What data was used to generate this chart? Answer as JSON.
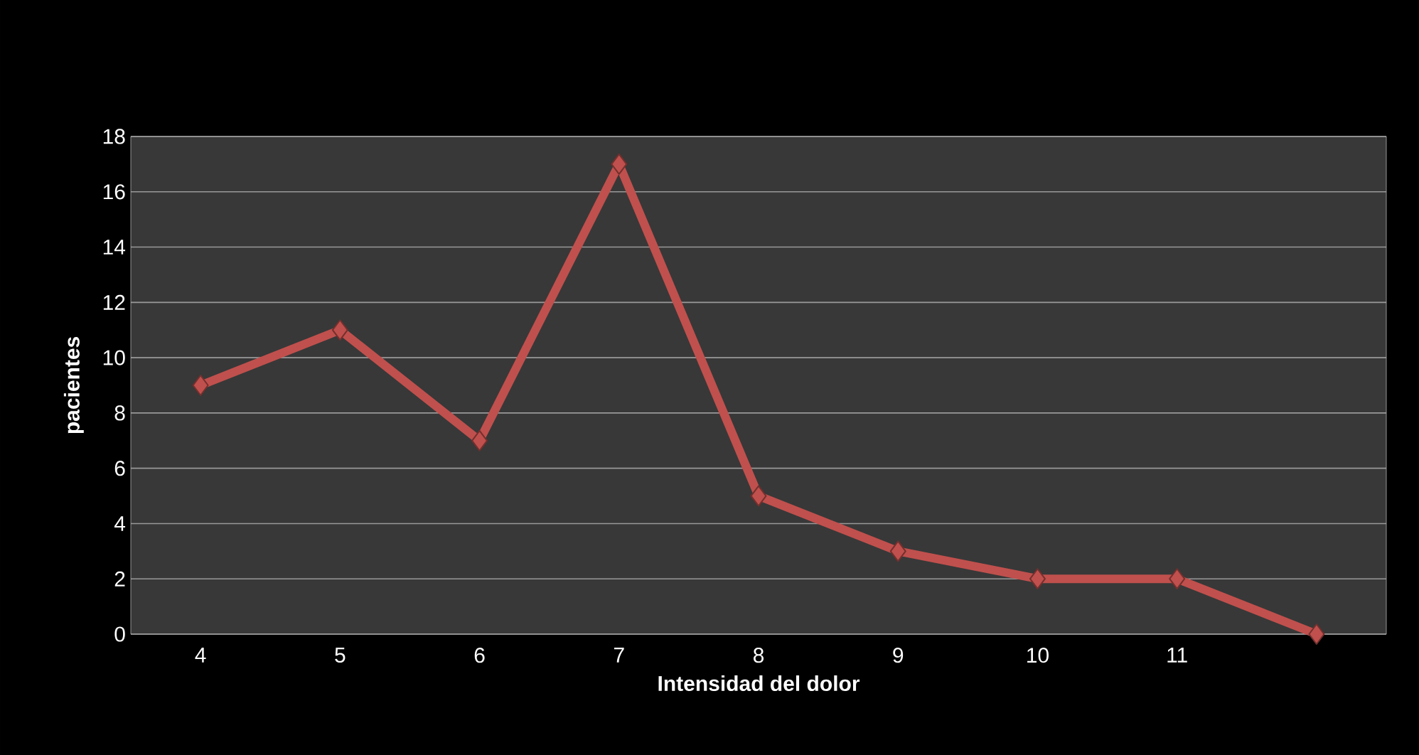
{
  "chart_data": {
    "type": "line",
    "xlabel": "Intensidad del dolor",
    "ylabel": "pacientes",
    "categories": [
      "4",
      "5",
      "6",
      "7",
      "8",
      "9",
      "10",
      "11",
      null
    ],
    "series": [
      {
        "color": "#c0504d",
        "values": [
          9,
          11,
          7,
          17,
          5,
          3,
          2,
          2,
          0
        ]
      }
    ],
    "ylim": [
      0,
      18
    ],
    "yticks": [
      0,
      2,
      4,
      6,
      8,
      10,
      12,
      14,
      16,
      18
    ],
    "grid": "y",
    "marker": "diamond",
    "line_style": "solid"
  }
}
